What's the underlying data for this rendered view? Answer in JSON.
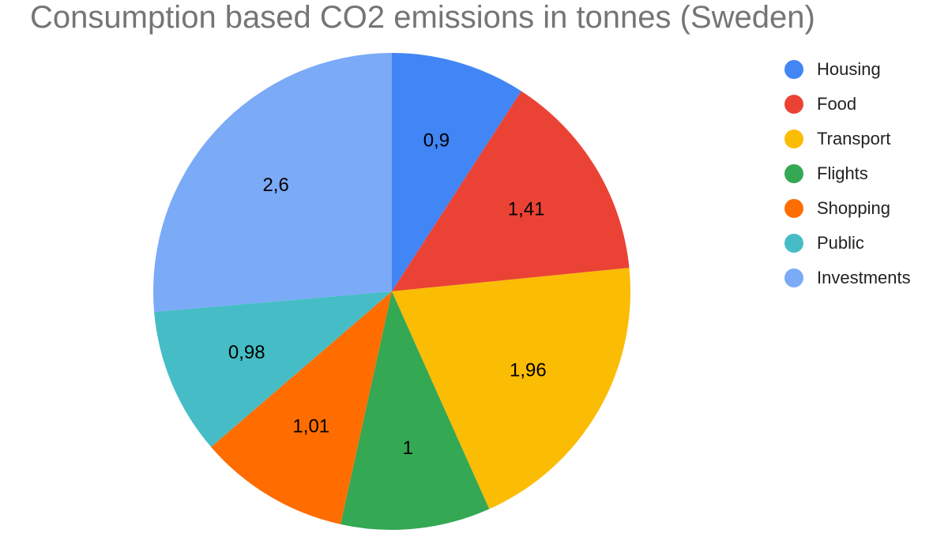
{
  "chart_data": {
    "type": "pie",
    "title": "Consumption based CO2 emissions in tonnes (Sweden)",
    "categories": [
      "Housing",
      "Food",
      "Transport",
      "Flights",
      "Shopping",
      "Public",
      "Investments"
    ],
    "values": [
      0.9,
      1.41,
      1.96,
      1,
      1.01,
      0.98,
      2.6
    ],
    "value_labels": [
      "0,9",
      "1,41",
      "1,96",
      "1",
      "1,01",
      "0,98",
      "2,6"
    ],
    "colors": [
      "#4285f4",
      "#ea4335",
      "#fbbc04",
      "#34a853",
      "#ff6d01",
      "#46bdc6",
      "#7baaf7"
    ],
    "legend_position": "right",
    "start_angle": "top, clockwise"
  }
}
